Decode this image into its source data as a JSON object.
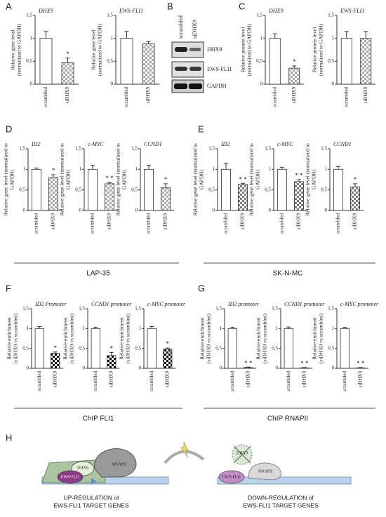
{
  "panel_letters": [
    "A",
    "B",
    "C",
    "D",
    "E",
    "F",
    "G",
    "H"
  ],
  "group_labels": [
    "LAP-35",
    "SK-N-MC",
    "ChIP FLI1",
    "ChIP RNAPII"
  ],
  "blot": {
    "lanes": [
      "scrambled",
      "siDHX9"
    ],
    "bands": [
      "DHX9",
      "EWS-FLI1",
      "GAPDH"
    ]
  },
  "diagram": {
    "left_labels": [
      "DHX9",
      "EWS-FLI1",
      "RNAPII"
    ],
    "right_labels": [
      "DHX9",
      "EWS-FLI1",
      "RNAPII"
    ],
    "captions": [
      [
        "UP-REGULATION of",
        "EWS-FLI1 TARGET GENES"
      ],
      [
        "DOWN-REGULATION of",
        "EWS-FLI1 TARGET GENES"
      ]
    ]
  },
  "chart_data": [
    {
      "type": "bar",
      "title": "DHX9",
      "ylabel": [
        "Relative gene level",
        "(normalized to GAPDH)"
      ],
      "categories": [
        "scrambled",
        "siDHX9"
      ],
      "values": [
        1,
        0.47
      ],
      "errors": [
        0.15,
        0.1
      ],
      "annotations": [
        null,
        "*"
      ],
      "colors": [
        "#ffffff",
        "#a8a8a8"
      ],
      "patterns": [
        null,
        "checker"
      ],
      "ylim": [
        0,
        1.5
      ],
      "yticks": [
        0,
        {
          "value": 0.5,
          "label": "0,5"
        },
        1,
        {
          "value": 1.5,
          "label": "1,5"
        }
      ]
    },
    {
      "type": "bar",
      "title": "EWS-FLI1",
      "ylabel": [
        "Relative gene level",
        "(normalized to GAPDH)"
      ],
      "categories": [
        "scrambled",
        "siDHX9"
      ],
      "values": [
        1,
        0.88
      ],
      "errors": [
        0.15,
        0.05
      ],
      "annotations": [
        null,
        null
      ],
      "colors": [
        "#ffffff",
        "#a8a8a8"
      ],
      "patterns": [
        null,
        "checker"
      ],
      "ylim": [
        0,
        1.5
      ],
      "yticks": [
        0,
        {
          "value": 0.5,
          "label": "0,5"
        },
        1,
        {
          "value": 1.5,
          "label": "1,5"
        }
      ]
    },
    {
      "type": "bar",
      "title": "DHX9",
      "ylabel": [
        "Relative protein level",
        "(normalized to GAPDH)"
      ],
      "categories": [
        "scrambled",
        "siDHX9"
      ],
      "values": [
        1,
        0.35
      ],
      "errors": [
        0.1,
        0.05
      ],
      "annotations": [
        null,
        "*"
      ],
      "colors": [
        "#ffffff",
        "#a8a8a8"
      ],
      "patterns": [
        null,
        "checker"
      ],
      "ylim": [
        0,
        1.5
      ],
      "yticks": [
        0,
        {
          "value": 0.5,
          "label": "0,5"
        },
        1,
        {
          "value": 1.5,
          "label": "1,5"
        }
      ]
    },
    {
      "type": "bar",
      "title": "EWS-FLI1",
      "ylabel": [
        "Relative protein level",
        "(normalized to GAPDH)"
      ],
      "categories": [
        "scrambled",
        "siDHX9"
      ],
      "values": [
        1,
        1
      ],
      "errors": [
        0.15,
        0.15
      ],
      "annotations": [
        null,
        null
      ],
      "colors": [
        "#ffffff",
        "#a8a8a8"
      ],
      "patterns": [
        null,
        "checker"
      ],
      "ylim": [
        0,
        1.5
      ],
      "yticks": [
        0,
        {
          "value": 0.5,
          "label": "0,5"
        },
        1,
        {
          "value": 1.5,
          "label": "1,5"
        }
      ]
    },
    {
      "type": "bar",
      "title": "ID2",
      "ylabel": [
        "Relative gene level (normalized to",
        "GAPDH)"
      ],
      "categories": [
        "scrambled",
        "siDHX9"
      ],
      "values": [
        1,
        0.8
      ],
      "errors": [
        0.03,
        0.07
      ],
      "annotations": [
        null,
        "*"
      ],
      "colors": [
        "#ffffff",
        "#a8a8a8"
      ],
      "patterns": [
        null,
        "checker"
      ],
      "ylim": [
        0,
        1.5
      ],
      "yticks": [
        0,
        {
          "value": 0.5,
          "label": "0,5"
        },
        1,
        {
          "value": 1.5,
          "label": "1,5"
        }
      ]
    },
    {
      "type": "bar",
      "title": "c-MYC",
      "ylabel": [
        "Relative gene level (normalized to",
        "GAPDH)"
      ],
      "categories": [
        "scrambled",
        "siDHX9"
      ],
      "values": [
        1,
        0.65
      ],
      "errors": [
        0.1,
        0.03
      ],
      "annotations": [
        null,
        "* *"
      ],
      "colors": [
        "#ffffff",
        "#a8a8a8"
      ],
      "patterns": [
        null,
        "checker"
      ],
      "ylim": [
        0,
        1.5
      ],
      "yticks": [
        0,
        {
          "value": 0.5,
          "label": "0,5"
        },
        1,
        {
          "value": 1.5,
          "label": "1,5"
        }
      ]
    },
    {
      "type": "bar",
      "title": "CCND1",
      "ylabel": [
        "Relative gene level (normalized to",
        "GAPDH)"
      ],
      "categories": [
        "scrambled",
        "siDHX9"
      ],
      "values": [
        1,
        0.55
      ],
      "errors": [
        0.1,
        0.1
      ],
      "annotations": [
        null,
        "*"
      ],
      "colors": [
        "#ffffff",
        "#a8a8a8"
      ],
      "patterns": [
        null,
        "checker"
      ],
      "ylim": [
        0,
        1.5
      ],
      "yticks": [
        0,
        {
          "value": 0.5,
          "label": "0,5"
        },
        1,
        {
          "value": 1.5,
          "label": "1,5"
        }
      ]
    },
    {
      "type": "bar",
      "title": "ID2",
      "ylabel": [
        "Relative gene level (normalized to",
        "GAPDH)"
      ],
      "categories": [
        "scrambled",
        "siDHX9"
      ],
      "values": [
        1,
        0.63
      ],
      "errors": [
        0.15,
        0.03
      ],
      "annotations": [
        null,
        "* *"
      ],
      "colors": [
        "#ffffff",
        "#7a7a7a"
      ],
      "patterns": [
        null,
        "checker"
      ],
      "ylim": [
        0,
        1.5
      ],
      "yticks": [
        0,
        {
          "value": 0.5,
          "label": "0,5"
        },
        1,
        {
          "value": 1.5,
          "label": "1,5"
        }
      ]
    },
    {
      "type": "bar",
      "title": "c-MYC",
      "ylabel": [
        "Relative gene level (normalized to",
        "GAPDH)"
      ],
      "categories": [
        "scrambled",
        "siDHX9"
      ],
      "values": [
        1,
        0.7
      ],
      "errors": [
        0.05,
        0.05
      ],
      "annotations": [
        null,
        "* *"
      ],
      "colors": [
        "#ffffff",
        "#7a7a7a"
      ],
      "patterns": [
        null,
        "checker"
      ],
      "ylim": [
        0,
        1.5
      ],
      "yticks": [
        0,
        {
          "value": 0.5,
          "label": "0,5"
        },
        1,
        {
          "value": 1.5,
          "label": "1,5"
        }
      ]
    },
    {
      "type": "bar",
      "title": "CCND1",
      "ylabel": [
        "Relative gene level (normalized to",
        "GAPDH)"
      ],
      "categories": [
        "scrambled",
        "siDHX9"
      ],
      "values": [
        1,
        0.57
      ],
      "errors": [
        0.07,
        0.08
      ],
      "annotations": [
        null,
        "*"
      ],
      "colors": [
        "#ffffff",
        "#7a7a7a"
      ],
      "patterns": [
        null,
        "checker"
      ],
      "ylim": [
        0,
        1.5
      ],
      "yticks": [
        0,
        {
          "value": 0.5,
          "label": "0,5"
        },
        1,
        {
          "value": 1.5,
          "label": "1,5"
        }
      ]
    },
    {
      "type": "bar",
      "title": "ID2 Promoter",
      "ylabel": [
        "Relative enrichment",
        "(siDHX9 vs scrambled)"
      ],
      "categories": [
        "scrambled",
        "siDHX9"
      ],
      "values": [
        1,
        0.38
      ],
      "errors": [
        0.05,
        0.03
      ],
      "annotations": [
        null,
        "*"
      ],
      "colors": [
        "#ffffff",
        "#000000"
      ],
      "patterns": [
        null,
        "checker"
      ],
      "ylim": [
        0,
        1.5
      ],
      "yticks": [
        0,
        {
          "value": 0.5,
          "label": "0,5"
        },
        1,
        {
          "value": 1.5,
          "label": "1,5"
        }
      ]
    },
    {
      "type": "bar",
      "title": "CCND1 promoter",
      "ylabel": [
        "Relative enrichment",
        "(siDHX9 vs scrambled)"
      ],
      "categories": [
        "scrambled",
        "siDHX9"
      ],
      "values": [
        1,
        0.32
      ],
      "errors": [
        0.03,
        0.08
      ],
      "annotations": [
        null,
        "*"
      ],
      "colors": [
        "#ffffff",
        "#000000"
      ],
      "patterns": [
        null,
        "checker"
      ],
      "ylim": [
        0,
        1.5
      ],
      "yticks": [
        0,
        {
          "value": 0.5,
          "label": "0,5"
        },
        1,
        {
          "value": 1.5,
          "label": "1,5"
        }
      ]
    },
    {
      "type": "bar",
      "title": "c-MYC promoter",
      "ylabel": [
        "Relative enrichment",
        "(siDHX9 vs scrambled)"
      ],
      "categories": [
        "scrambled",
        "siDHX9"
      ],
      "values": [
        1,
        0.48
      ],
      "errors": [
        0.05,
        0.03
      ],
      "annotations": [
        null,
        "*"
      ],
      "colors": [
        "#ffffff",
        "#000000"
      ],
      "patterns": [
        null,
        "checker"
      ],
      "ylim": [
        0,
        1.5
      ],
      "yticks": [
        0,
        {
          "value": 0.5,
          "label": "0,5"
        },
        1,
        {
          "value": 1.5,
          "label": "1,5"
        }
      ]
    },
    {
      "type": "bar",
      "title": "ID2 promoter",
      "ylabel": [
        "Relative enrichment",
        "(siDHX9 vs scrambled)"
      ],
      "categories": [
        "scrambled",
        "siDHX9"
      ],
      "values": [
        1,
        0.02
      ],
      "errors": [
        0.03,
        0.01
      ],
      "annotations": [
        null,
        "* *"
      ],
      "colors": [
        "#ffffff",
        "#000000"
      ],
      "patterns": [
        null,
        "checker"
      ],
      "ylim": [
        0,
        1.5
      ],
      "yticks": [
        0,
        {
          "value": 0.5,
          "label": "0,5"
        },
        1,
        {
          "value": 1.5,
          "label": "1,5"
        }
      ]
    },
    {
      "type": "bar",
      "title": "CCND1 promoter",
      "ylabel": [
        "Relative enrichment",
        "(siDHX9 vs scrambled)"
      ],
      "categories": [
        "scrambled",
        "siDHX9"
      ],
      "values": [
        1,
        0.01
      ],
      "errors": [
        0.04,
        0.01
      ],
      "annotations": [
        null,
        "* *"
      ],
      "colors": [
        "#ffffff",
        "#000000"
      ],
      "patterns": [
        null,
        "checker"
      ],
      "ylim": [
        0,
        1.5
      ],
      "yticks": [
        0,
        {
          "value": 0.5,
          "label": "0,5"
        },
        1,
        {
          "value": 1.5,
          "label": "1,5"
        }
      ]
    },
    {
      "type": "bar",
      "title": "c-MYC promoter",
      "ylabel": [
        "Relative enrichment",
        "(siDHX9 vs scrambled)"
      ],
      "categories": [
        "scrambled",
        "siDHX9"
      ],
      "values": [
        1,
        0.01
      ],
      "errors": [
        0.03,
        0.01
      ],
      "annotations": [
        null,
        "* *"
      ],
      "colors": [
        "#ffffff",
        "#000000"
      ],
      "patterns": [
        null,
        "checker"
      ],
      "ylim": [
        0,
        1.5
      ],
      "yticks": [
        0,
        {
          "value": 0.5,
          "label": "0,5"
        },
        1,
        {
          "value": 1.5,
          "label": "1,5"
        }
      ]
    }
  ]
}
